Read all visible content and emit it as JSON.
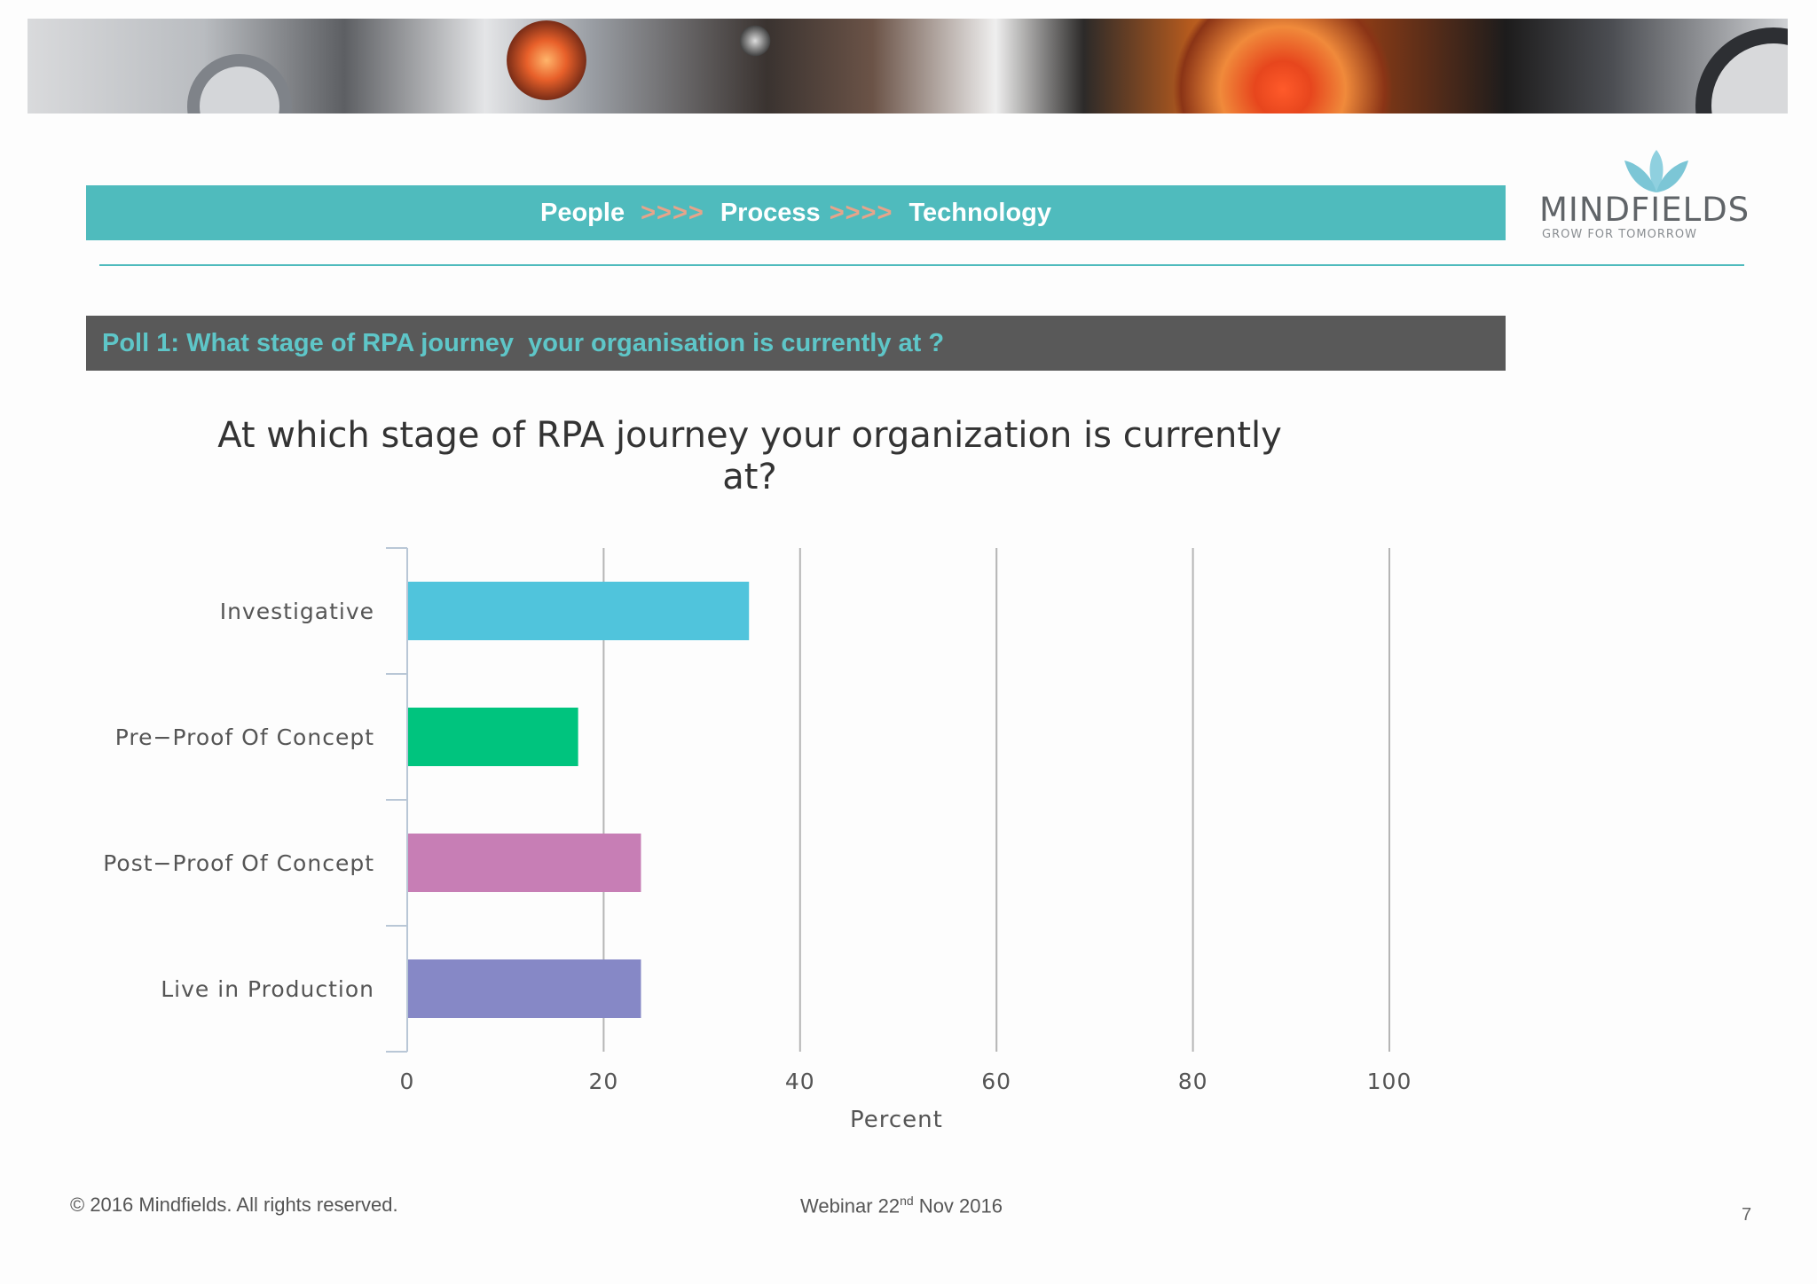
{
  "header": {
    "people": "People",
    "arrows1": ">>>>",
    "process": "Process",
    "arrows2": ">>>>",
    "technology": "Technology"
  },
  "logo": {
    "wordmark": "MINDFIELDS",
    "tagline": "GROW FOR TOMORROW",
    "accent": "#7cc6d6"
  },
  "poll": {
    "title": "Poll 1: What stage of RPA journey  your organisation is currently at ?"
  },
  "chart_data": {
    "type": "bar",
    "orientation": "horizontal",
    "title_line1": "At which stage of RPA journey your organization is currently",
    "title_line2": "at?",
    "xlabel": "Percent",
    "ylabel": "",
    "xlim": [
      0,
      100
    ],
    "ticks": [
      "0",
      "20",
      "40",
      "60",
      "80",
      "100"
    ],
    "tick_values": [
      0,
      20,
      40,
      60,
      80,
      100
    ],
    "grid": true,
    "categories": [
      "Investigative",
      "Pre−Proof Of Concept",
      "Post−Proof Of Concept",
      "Live in Production"
    ],
    "values": [
      34.8,
      17.4,
      23.8,
      23.8
    ],
    "colors": [
      "#50c4dc",
      "#00c47e",
      "#c77eb5",
      "#8688c6"
    ]
  },
  "footer": {
    "copyright": "© 2016  Mindfields. All rights reserved.",
    "webinar_prefix": "Webinar 22",
    "webinar_sup": "nd",
    "webinar_suffix": " Nov 2016",
    "page": "7"
  },
  "colors": {
    "teal": "#4fbbbd",
    "poll_bg": "#595959",
    "poll_text": "#5ec6c8",
    "arrows": "#e6a48a"
  }
}
